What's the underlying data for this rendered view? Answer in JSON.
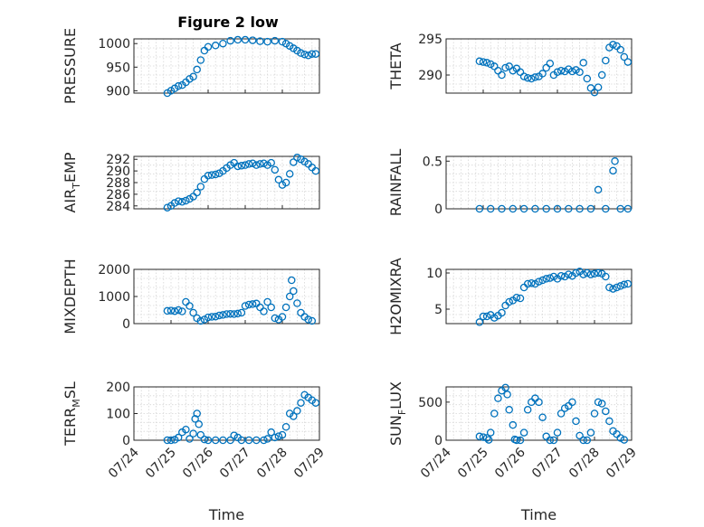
{
  "chart_data": {
    "type": "scatter",
    "title": "Figure 2 low",
    "marker_color": "#0072BD",
    "x_tick_labels": [
      "07/24",
      "07/25",
      "07/26",
      "07/27",
      "07/28",
      "07/29"
    ],
    "x_range_days": [
      0,
      5
    ],
    "xlabel": "Time",
    "grid": true,
    "panels": [
      {
        "id": "pressure",
        "ylabel": "PRESSURE",
        "ylim": [
          895,
          1010
        ],
        "yticks": [
          900,
          950,
          1000
        ],
        "points": [
          [
            0.9,
            895
          ],
          [
            1.0,
            900
          ],
          [
            1.1,
            905
          ],
          [
            1.2,
            910
          ],
          [
            1.3,
            912
          ],
          [
            1.4,
            918
          ],
          [
            1.5,
            925
          ],
          [
            1.6,
            930
          ],
          [
            1.7,
            945
          ],
          [
            1.8,
            965
          ],
          [
            1.9,
            985
          ],
          [
            2.0,
            993
          ],
          [
            2.2,
            996
          ],
          [
            2.4,
            1000
          ],
          [
            2.6,
            1006
          ],
          [
            2.8,
            1008
          ],
          [
            3.0,
            1008
          ],
          [
            3.2,
            1007
          ],
          [
            3.4,
            1005
          ],
          [
            3.6,
            1004
          ],
          [
            3.8,
            1006
          ],
          [
            4.0,
            1004
          ],
          [
            4.1,
            1000
          ],
          [
            4.2,
            995
          ],
          [
            4.3,
            990
          ],
          [
            4.4,
            985
          ],
          [
            4.5,
            980
          ],
          [
            4.6,
            977
          ],
          [
            4.7,
            975
          ],
          [
            4.8,
            978
          ],
          [
            4.9,
            978
          ]
        ]
      },
      {
        "id": "theta",
        "ylabel": "THETA",
        "ylim": [
          287.5,
          295
        ],
        "yticks": [
          290,
          295
        ],
        "points": [
          [
            0.9,
            291.9
          ],
          [
            1.0,
            291.8
          ],
          [
            1.1,
            291.7
          ],
          [
            1.2,
            291.5
          ],
          [
            1.3,
            291.2
          ],
          [
            1.4,
            290.6
          ],
          [
            1.5,
            290.0
          ],
          [
            1.6,
            291.0
          ],
          [
            1.7,
            291.2
          ],
          [
            1.8,
            290.6
          ],
          [
            1.9,
            290.9
          ],
          [
            2.0,
            290.4
          ],
          [
            2.1,
            289.8
          ],
          [
            2.2,
            289.6
          ],
          [
            2.3,
            289.5
          ],
          [
            2.4,
            289.7
          ],
          [
            2.5,
            289.8
          ],
          [
            2.6,
            290.2
          ],
          [
            2.7,
            291.0
          ],
          [
            2.8,
            291.6
          ],
          [
            2.9,
            290.0
          ],
          [
            3.0,
            290.4
          ],
          [
            3.1,
            290.6
          ],
          [
            3.2,
            290.5
          ],
          [
            3.3,
            290.8
          ],
          [
            3.4,
            290.5
          ],
          [
            3.5,
            290.7
          ],
          [
            3.6,
            290.4
          ],
          [
            3.7,
            291.7
          ],
          [
            3.8,
            289.5
          ],
          [
            3.9,
            288.2
          ],
          [
            4.0,
            287.6
          ],
          [
            4.1,
            288.3
          ],
          [
            4.2,
            290.0
          ],
          [
            4.3,
            292.0
          ],
          [
            4.4,
            293.8
          ],
          [
            4.5,
            294.2
          ],
          [
            4.6,
            294.0
          ],
          [
            4.7,
            293.5
          ],
          [
            4.8,
            292.5
          ],
          [
            4.9,
            291.8
          ]
        ]
      },
      {
        "id": "air_temp",
        "ylabel": "AIR",
        "ylabel_sub": "T",
        "ylabel_rest": "EMP",
        "ylim": [
          283.5,
          292.5
        ],
        "yticks": [
          284,
          286,
          288,
          290,
          292
        ],
        "points": [
          [
            0.9,
            283.7
          ],
          [
            1.0,
            284.0
          ],
          [
            1.1,
            284.5
          ],
          [
            1.2,
            284.8
          ],
          [
            1.3,
            284.7
          ],
          [
            1.4,
            284.9
          ],
          [
            1.5,
            285.2
          ],
          [
            1.6,
            285.6
          ],
          [
            1.7,
            286.3
          ],
          [
            1.8,
            287.3
          ],
          [
            1.9,
            288.6
          ],
          [
            2.0,
            289.2
          ],
          [
            2.1,
            289.3
          ],
          [
            2.2,
            289.4
          ],
          [
            2.3,
            289.6
          ],
          [
            2.4,
            290.0
          ],
          [
            2.5,
            290.5
          ],
          [
            2.6,
            291.0
          ],
          [
            2.7,
            291.4
          ],
          [
            2.8,
            290.8
          ],
          [
            2.9,
            290.9
          ],
          [
            3.0,
            291.0
          ],
          [
            3.1,
            291.2
          ],
          [
            3.2,
            291.3
          ],
          [
            3.3,
            291.0
          ],
          [
            3.4,
            291.2
          ],
          [
            3.5,
            291.3
          ],
          [
            3.6,
            291.0
          ],
          [
            3.7,
            291.4
          ],
          [
            3.8,
            290.2
          ],
          [
            3.9,
            288.5
          ],
          [
            4.0,
            287.6
          ],
          [
            4.1,
            288.0
          ],
          [
            4.2,
            289.5
          ],
          [
            4.3,
            291.5
          ],
          [
            4.4,
            292.3
          ],
          [
            4.5,
            292.0
          ],
          [
            4.6,
            291.6
          ],
          [
            4.7,
            291.2
          ],
          [
            4.8,
            290.6
          ],
          [
            4.9,
            290.0
          ]
        ]
      },
      {
        "id": "rainfall",
        "ylabel": "RAINFALL",
        "ylim": [
          0,
          0.55
        ],
        "yticks": [
          0,
          0.5
        ],
        "points": [
          [
            0.9,
            0
          ],
          [
            1.2,
            0
          ],
          [
            1.5,
            0
          ],
          [
            1.8,
            0
          ],
          [
            2.1,
            0
          ],
          [
            2.4,
            0
          ],
          [
            2.7,
            0
          ],
          [
            3.0,
            0
          ],
          [
            3.3,
            0
          ],
          [
            3.6,
            0
          ],
          [
            3.9,
            0
          ],
          [
            4.1,
            0.2
          ],
          [
            4.3,
            0
          ],
          [
            4.5,
            0.4
          ],
          [
            4.55,
            0.5
          ],
          [
            4.7,
            0
          ],
          [
            4.9,
            0
          ]
        ]
      },
      {
        "id": "mixdepth",
        "ylabel": "MIXDEPTH",
        "ylim": [
          0,
          2000
        ],
        "yticks": [
          0,
          1000,
          2000
        ],
        "points": [
          [
            0.9,
            470
          ],
          [
            1.0,
            480
          ],
          [
            1.1,
            460
          ],
          [
            1.2,
            500
          ],
          [
            1.3,
            450
          ],
          [
            1.4,
            800
          ],
          [
            1.5,
            650
          ],
          [
            1.6,
            400
          ],
          [
            1.7,
            200
          ],
          [
            1.8,
            100
          ],
          [
            1.9,
            150
          ],
          [
            2.0,
            230
          ],
          [
            2.1,
            250
          ],
          [
            2.2,
            260
          ],
          [
            2.3,
            300
          ],
          [
            2.4,
            320
          ],
          [
            2.5,
            350
          ],
          [
            2.6,
            360
          ],
          [
            2.7,
            350
          ],
          [
            2.8,
            370
          ],
          [
            2.9,
            400
          ],
          [
            3.0,
            650
          ],
          [
            3.1,
            700
          ],
          [
            3.2,
            720
          ],
          [
            3.3,
            740
          ],
          [
            3.4,
            600
          ],
          [
            3.5,
            450
          ],
          [
            3.6,
            800
          ],
          [
            3.7,
            600
          ],
          [
            3.8,
            200
          ],
          [
            3.9,
            150
          ],
          [
            4.0,
            250
          ],
          [
            4.1,
            600
          ],
          [
            4.2,
            1000
          ],
          [
            4.25,
            1600
          ],
          [
            4.3,
            1200
          ],
          [
            4.4,
            750
          ],
          [
            4.5,
            400
          ],
          [
            4.6,
            250
          ],
          [
            4.7,
            150
          ],
          [
            4.8,
            100
          ]
        ]
      },
      {
        "id": "h2omixra",
        "ylabel": "H2OMIXRA",
        "ylim": [
          3,
          10.5
        ],
        "yticks": [
          5,
          10
        ],
        "points": [
          [
            0.9,
            3.2
          ],
          [
            1.0,
            4.0
          ],
          [
            1.1,
            4.0
          ],
          [
            1.2,
            4.2
          ],
          [
            1.3,
            3.8
          ],
          [
            1.4,
            4.1
          ],
          [
            1.5,
            4.5
          ],
          [
            1.6,
            5.5
          ],
          [
            1.7,
            6.0
          ],
          [
            1.8,
            6.2
          ],
          [
            1.9,
            6.6
          ],
          [
            2.0,
            6.5
          ],
          [
            2.1,
            8.0
          ],
          [
            2.2,
            8.5
          ],
          [
            2.3,
            8.6
          ],
          [
            2.4,
            8.5
          ],
          [
            2.5,
            8.8
          ],
          [
            2.6,
            9.0
          ],
          [
            2.7,
            9.2
          ],
          [
            2.8,
            9.3
          ],
          [
            2.9,
            9.5
          ],
          [
            3.0,
            9.2
          ],
          [
            3.1,
            9.6
          ],
          [
            3.2,
            9.5
          ],
          [
            3.3,
            9.8
          ],
          [
            3.4,
            9.6
          ],
          [
            3.5,
            10.0
          ],
          [
            3.6,
            10.2
          ],
          [
            3.7,
            9.8
          ],
          [
            3.8,
            10.0
          ],
          [
            3.9,
            9.8
          ],
          [
            4.0,
            9.9
          ],
          [
            4.1,
            10.0
          ],
          [
            4.2,
            9.9
          ],
          [
            4.3,
            9.5
          ],
          [
            4.4,
            8.0
          ],
          [
            4.5,
            7.8
          ],
          [
            4.6,
            8.0
          ],
          [
            4.7,
            8.2
          ],
          [
            4.8,
            8.4
          ],
          [
            4.9,
            8.5
          ]
        ]
      },
      {
        "id": "terr_msl",
        "ylabel": "TERR",
        "ylabel_sub": "M",
        "ylabel_rest": "SL",
        "ylim": [
          0,
          200
        ],
        "yticks": [
          0,
          100,
          200
        ],
        "points": [
          [
            0.9,
            0
          ],
          [
            1.0,
            0
          ],
          [
            1.1,
            2
          ],
          [
            1.2,
            10
          ],
          [
            1.3,
            30
          ],
          [
            1.4,
            40
          ],
          [
            1.5,
            5
          ],
          [
            1.6,
            25
          ],
          [
            1.65,
            80
          ],
          [
            1.7,
            100
          ],
          [
            1.75,
            60
          ],
          [
            1.8,
            20
          ],
          [
            1.9,
            3
          ],
          [
            2.0,
            0
          ],
          [
            2.2,
            0
          ],
          [
            2.4,
            0
          ],
          [
            2.6,
            0
          ],
          [
            2.7,
            18
          ],
          [
            2.8,
            10
          ],
          [
            2.9,
            0
          ],
          [
            3.1,
            0
          ],
          [
            3.3,
            0
          ],
          [
            3.5,
            0
          ],
          [
            3.6,
            5
          ],
          [
            3.7,
            30
          ],
          [
            3.8,
            10
          ],
          [
            3.9,
            15
          ],
          [
            4.0,
            20
          ],
          [
            4.1,
            50
          ],
          [
            4.2,
            100
          ],
          [
            4.3,
            90
          ],
          [
            4.4,
            110
          ],
          [
            4.5,
            140
          ],
          [
            4.6,
            170
          ],
          [
            4.7,
            160
          ],
          [
            4.8,
            150
          ],
          [
            4.9,
            140
          ]
        ]
      },
      {
        "id": "sun_flux",
        "ylabel": "SUN",
        "ylabel_sub": "F",
        "ylabel_rest": "LUX",
        "ylim": [
          0,
          700
        ],
        "yticks": [
          0,
          500
        ],
        "points": [
          [
            0.9,
            50
          ],
          [
            1.0,
            40
          ],
          [
            1.1,
            30
          ],
          [
            1.15,
            5
          ],
          [
            1.2,
            100
          ],
          [
            1.3,
            350
          ],
          [
            1.4,
            550
          ],
          [
            1.5,
            650
          ],
          [
            1.6,
            690
          ],
          [
            1.65,
            600
          ],
          [
            1.7,
            400
          ],
          [
            1.8,
            200
          ],
          [
            1.85,
            10
          ],
          [
            1.9,
            0
          ],
          [
            2.0,
            0
          ],
          [
            2.1,
            100
          ],
          [
            2.2,
            400
          ],
          [
            2.3,
            500
          ],
          [
            2.4,
            550
          ],
          [
            2.5,
            500
          ],
          [
            2.6,
            300
          ],
          [
            2.7,
            50
          ],
          [
            2.8,
            0
          ],
          [
            2.9,
            0
          ],
          [
            3.0,
            100
          ],
          [
            3.1,
            350
          ],
          [
            3.2,
            420
          ],
          [
            3.3,
            450
          ],
          [
            3.4,
            500
          ],
          [
            3.5,
            250
          ],
          [
            3.6,
            60
          ],
          [
            3.7,
            0
          ],
          [
            3.8,
            0
          ],
          [
            3.9,
            100
          ],
          [
            4.0,
            350
          ],
          [
            4.1,
            500
          ],
          [
            4.2,
            480
          ],
          [
            4.3,
            380
          ],
          [
            4.4,
            250
          ],
          [
            4.5,
            120
          ],
          [
            4.6,
            80
          ],
          [
            4.7,
            30
          ],
          [
            4.8,
            5
          ]
        ]
      }
    ]
  }
}
